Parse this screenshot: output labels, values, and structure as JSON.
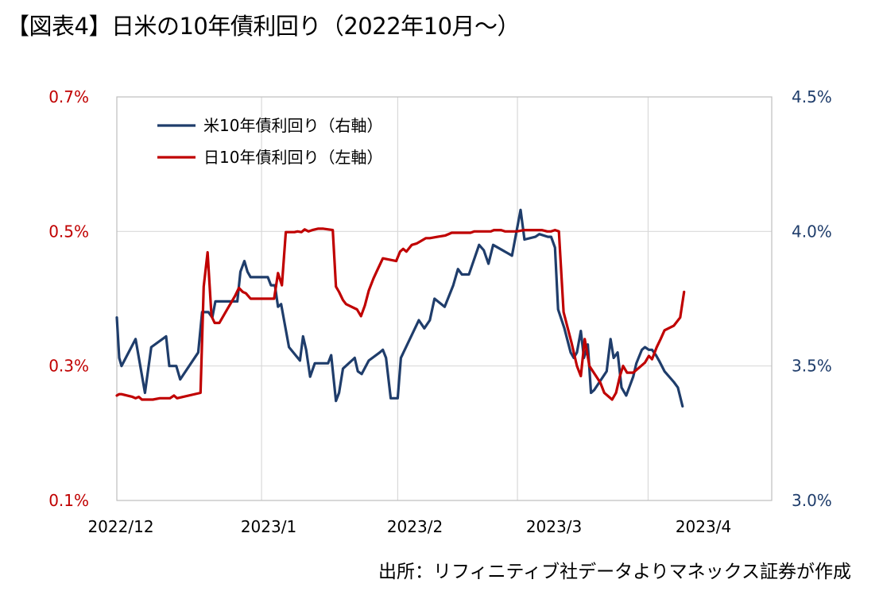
{
  "header": {
    "title": "【図表4】日米の10年債利回り（2022年10月～）"
  },
  "footer": {
    "source": "出所：リフィニティブ社データよりマネックス証券が作成"
  },
  "colors": {
    "us_series": "#1f3d6b",
    "jp_series": "#c00000",
    "left_axis": "#c00000",
    "right_axis": "#1f3d6b",
    "grid": "#d9d9d9"
  },
  "chart_data": {
    "type": "line",
    "x_ticks": [
      "2022/12",
      "2023/1",
      "2023/2",
      "2023/3",
      "2023/4"
    ],
    "y_left": {
      "ticks": [
        "0.1%",
        "0.3%",
        "0.5%",
        "0.7%"
      ],
      "ylim": [
        0.1,
        0.7
      ],
      "unit": "%"
    },
    "y_right": {
      "ticks": [
        "3.0%",
        "3.5%",
        "4.0%",
        "4.5%"
      ],
      "ylim": [
        3.0,
        4.5
      ],
      "unit": "%"
    },
    "grid": true,
    "legend_position": "top-left",
    "series": [
      {
        "name": "米10年債利回り（右軸）",
        "axis": "right",
        "points": [
          [
            0.0,
            3.68
          ],
          [
            0.3,
            3.53
          ],
          [
            0.6,
            3.5
          ],
          [
            2.4,
            3.6
          ],
          [
            3.6,
            3.4
          ],
          [
            4.4,
            3.57
          ],
          [
            6.3,
            3.61
          ],
          [
            6.7,
            3.5
          ],
          [
            7.6,
            3.5
          ],
          [
            8.1,
            3.45
          ],
          [
            10.4,
            3.55
          ],
          [
            10.9,
            3.7
          ],
          [
            11.7,
            3.7
          ],
          [
            12.2,
            3.68
          ],
          [
            12.6,
            3.74
          ],
          [
            14.0,
            3.74
          ],
          [
            15.4,
            3.74
          ],
          [
            15.8,
            3.85
          ],
          [
            16.3,
            3.89
          ],
          [
            16.7,
            3.85
          ],
          [
            17.1,
            3.83
          ],
          [
            18.2,
            3.83
          ],
          [
            19.3,
            3.83
          ],
          [
            19.7,
            3.8
          ],
          [
            20.2,
            3.8
          ],
          [
            20.6,
            3.72
          ],
          [
            21.0,
            3.73
          ],
          [
            22.0,
            3.57
          ],
          [
            23.4,
            3.52
          ],
          [
            23.8,
            3.61
          ],
          [
            24.2,
            3.56
          ],
          [
            24.7,
            3.46
          ],
          [
            25.3,
            3.51
          ],
          [
            26.5,
            3.51
          ],
          [
            27.0,
            3.51
          ],
          [
            27.4,
            3.54
          ],
          [
            28.0,
            3.37
          ],
          [
            28.4,
            3.4
          ],
          [
            28.9,
            3.49
          ],
          [
            30.4,
            3.53
          ],
          [
            30.8,
            3.48
          ],
          [
            31.3,
            3.47
          ],
          [
            32.2,
            3.52
          ],
          [
            33.6,
            3.55
          ],
          [
            34.0,
            3.56
          ],
          [
            34.4,
            3.53
          ],
          [
            35.0,
            3.38
          ],
          [
            35.4,
            3.38
          ],
          [
            35.9,
            3.38
          ],
          [
            36.3,
            3.53
          ],
          [
            38.6,
            3.67
          ],
          [
            39.3,
            3.64
          ],
          [
            40.0,
            3.67
          ],
          [
            40.6,
            3.75
          ],
          [
            41.9,
            3.72
          ],
          [
            43.0,
            3.8
          ],
          [
            43.6,
            3.86
          ],
          [
            44.1,
            3.84
          ],
          [
            45.0,
            3.84
          ],
          [
            46.3,
            3.95
          ],
          [
            46.9,
            3.93
          ],
          [
            47.5,
            3.88
          ],
          [
            48.1,
            3.95
          ],
          [
            49.9,
            3.92
          ],
          [
            50.5,
            3.91
          ],
          [
            51.6,
            4.08
          ],
          [
            52.1,
            3.97
          ],
          [
            53.5,
            3.98
          ],
          [
            54.0,
            3.99
          ],
          [
            55.1,
            3.98
          ],
          [
            55.5,
            3.98
          ],
          [
            56.0,
            3.94
          ],
          [
            56.4,
            3.71
          ],
          [
            57.2,
            3.64
          ],
          [
            58.0,
            3.55
          ],
          [
            58.4,
            3.53
          ],
          [
            58.8,
            3.55
          ],
          [
            59.3,
            3.63
          ],
          [
            59.7,
            3.53
          ],
          [
            60.2,
            3.58
          ],
          [
            60.6,
            3.4
          ],
          [
            61.0,
            3.41
          ],
          [
            62.6,
            3.48
          ],
          [
            63.1,
            3.6
          ],
          [
            63.5,
            3.53
          ],
          [
            64.0,
            3.55
          ],
          [
            64.5,
            3.42
          ],
          [
            65.1,
            3.39
          ],
          [
            66.0,
            3.46
          ],
          [
            66.4,
            3.51
          ],
          [
            67.1,
            3.56
          ],
          [
            67.5,
            3.57
          ],
          [
            68.0,
            3.56
          ],
          [
            68.4,
            3.56
          ],
          [
            68.9,
            3.54
          ],
          [
            69.3,
            3.52
          ],
          [
            70.0,
            3.48
          ],
          [
            71.2,
            3.44
          ],
          [
            71.7,
            3.42
          ],
          [
            72.3,
            3.35
          ]
        ]
      },
      {
        "name": "日10年債利回り（左軸）",
        "axis": "left",
        "points": [
          [
            0.0,
            0.256
          ],
          [
            0.3,
            0.258
          ],
          [
            0.6,
            0.258
          ],
          [
            2.0,
            0.254
          ],
          [
            2.4,
            0.252
          ],
          [
            2.8,
            0.254
          ],
          [
            3.2,
            0.25
          ],
          [
            3.6,
            0.25
          ],
          [
            4.6,
            0.25
          ],
          [
            5.5,
            0.252
          ],
          [
            6.3,
            0.252
          ],
          [
            6.8,
            0.252
          ],
          [
            7.3,
            0.256
          ],
          [
            7.7,
            0.252
          ],
          [
            10.7,
            0.26
          ],
          [
            11.1,
            0.418
          ],
          [
            11.6,
            0.469
          ],
          [
            12.1,
            0.374
          ],
          [
            12.5,
            0.364
          ],
          [
            13.1,
            0.364
          ],
          [
            14.1,
            0.384
          ],
          [
            15.1,
            0.404
          ],
          [
            15.6,
            0.416
          ],
          [
            16.1,
            0.41
          ],
          [
            16.5,
            0.408
          ],
          [
            17.1,
            0.4
          ],
          [
            19.3,
            0.4
          ],
          [
            19.7,
            0.4
          ],
          [
            20.1,
            0.4
          ],
          [
            20.6,
            0.438
          ],
          [
            21.1,
            0.42
          ],
          [
            21.6,
            0.499
          ],
          [
            22.7,
            0.499
          ],
          [
            23.1,
            0.5
          ],
          [
            23.6,
            0.499
          ],
          [
            24.0,
            0.503
          ],
          [
            24.5,
            0.5
          ],
          [
            25.0,
            0.502
          ],
          [
            25.7,
            0.504
          ],
          [
            26.4,
            0.504
          ],
          [
            27.6,
            0.502
          ],
          [
            28.0,
            0.418
          ],
          [
            28.4,
            0.41
          ],
          [
            28.9,
            0.398
          ],
          [
            29.3,
            0.392
          ],
          [
            30.0,
            0.388
          ],
          [
            30.7,
            0.384
          ],
          [
            31.2,
            0.374
          ],
          [
            31.7,
            0.39
          ],
          [
            32.2,
            0.412
          ],
          [
            32.8,
            0.43
          ],
          [
            33.2,
            0.44
          ],
          [
            34.0,
            0.46
          ],
          [
            35.7,
            0.456
          ],
          [
            36.2,
            0.47
          ],
          [
            36.6,
            0.474
          ],
          [
            37.0,
            0.47
          ],
          [
            37.7,
            0.48
          ],
          [
            38.3,
            0.482
          ],
          [
            39.5,
            0.49
          ],
          [
            40.0,
            0.49
          ],
          [
            41.0,
            0.492
          ],
          [
            42.0,
            0.494
          ],
          [
            42.8,
            0.498
          ],
          [
            44.0,
            0.498
          ],
          [
            45.2,
            0.498
          ],
          [
            45.7,
            0.5
          ],
          [
            46.2,
            0.5
          ],
          [
            47.3,
            0.5
          ],
          [
            47.8,
            0.5
          ],
          [
            48.2,
            0.502
          ],
          [
            49.1,
            0.502
          ],
          [
            49.6,
            0.5
          ],
          [
            50.5,
            0.5
          ],
          [
            51.1,
            0.5
          ],
          [
            52.1,
            0.502
          ],
          [
            52.5,
            0.502
          ],
          [
            53.8,
            0.502
          ],
          [
            54.3,
            0.502
          ],
          [
            55.0,
            0.5
          ],
          [
            55.5,
            0.5
          ],
          [
            56.0,
            0.502
          ],
          [
            56.5,
            0.5
          ],
          [
            57.1,
            0.38
          ],
          [
            58.1,
            0.335
          ],
          [
            58.8,
            0.3
          ],
          [
            59.3,
            0.285
          ],
          [
            59.8,
            0.34
          ],
          [
            60.4,
            0.3
          ],
          [
            61.8,
            0.275
          ],
          [
            62.3,
            0.26
          ],
          [
            63.3,
            0.25
          ],
          [
            63.8,
            0.26
          ],
          [
            64.3,
            0.285
          ],
          [
            64.7,
            0.3
          ],
          [
            65.2,
            0.29
          ],
          [
            66.0,
            0.29
          ],
          [
            66.5,
            0.295
          ],
          [
            67.0,
            0.3
          ],
          [
            67.5,
            0.305
          ],
          [
            68.0,
            0.315
          ],
          [
            68.4,
            0.31
          ],
          [
            69.0,
            0.328
          ],
          [
            69.5,
            0.34
          ],
          [
            70.0,
            0.353
          ],
          [
            71.2,
            0.36
          ],
          [
            72.0,
            0.372
          ],
          [
            72.5,
            0.41
          ]
        ]
      }
    ]
  }
}
